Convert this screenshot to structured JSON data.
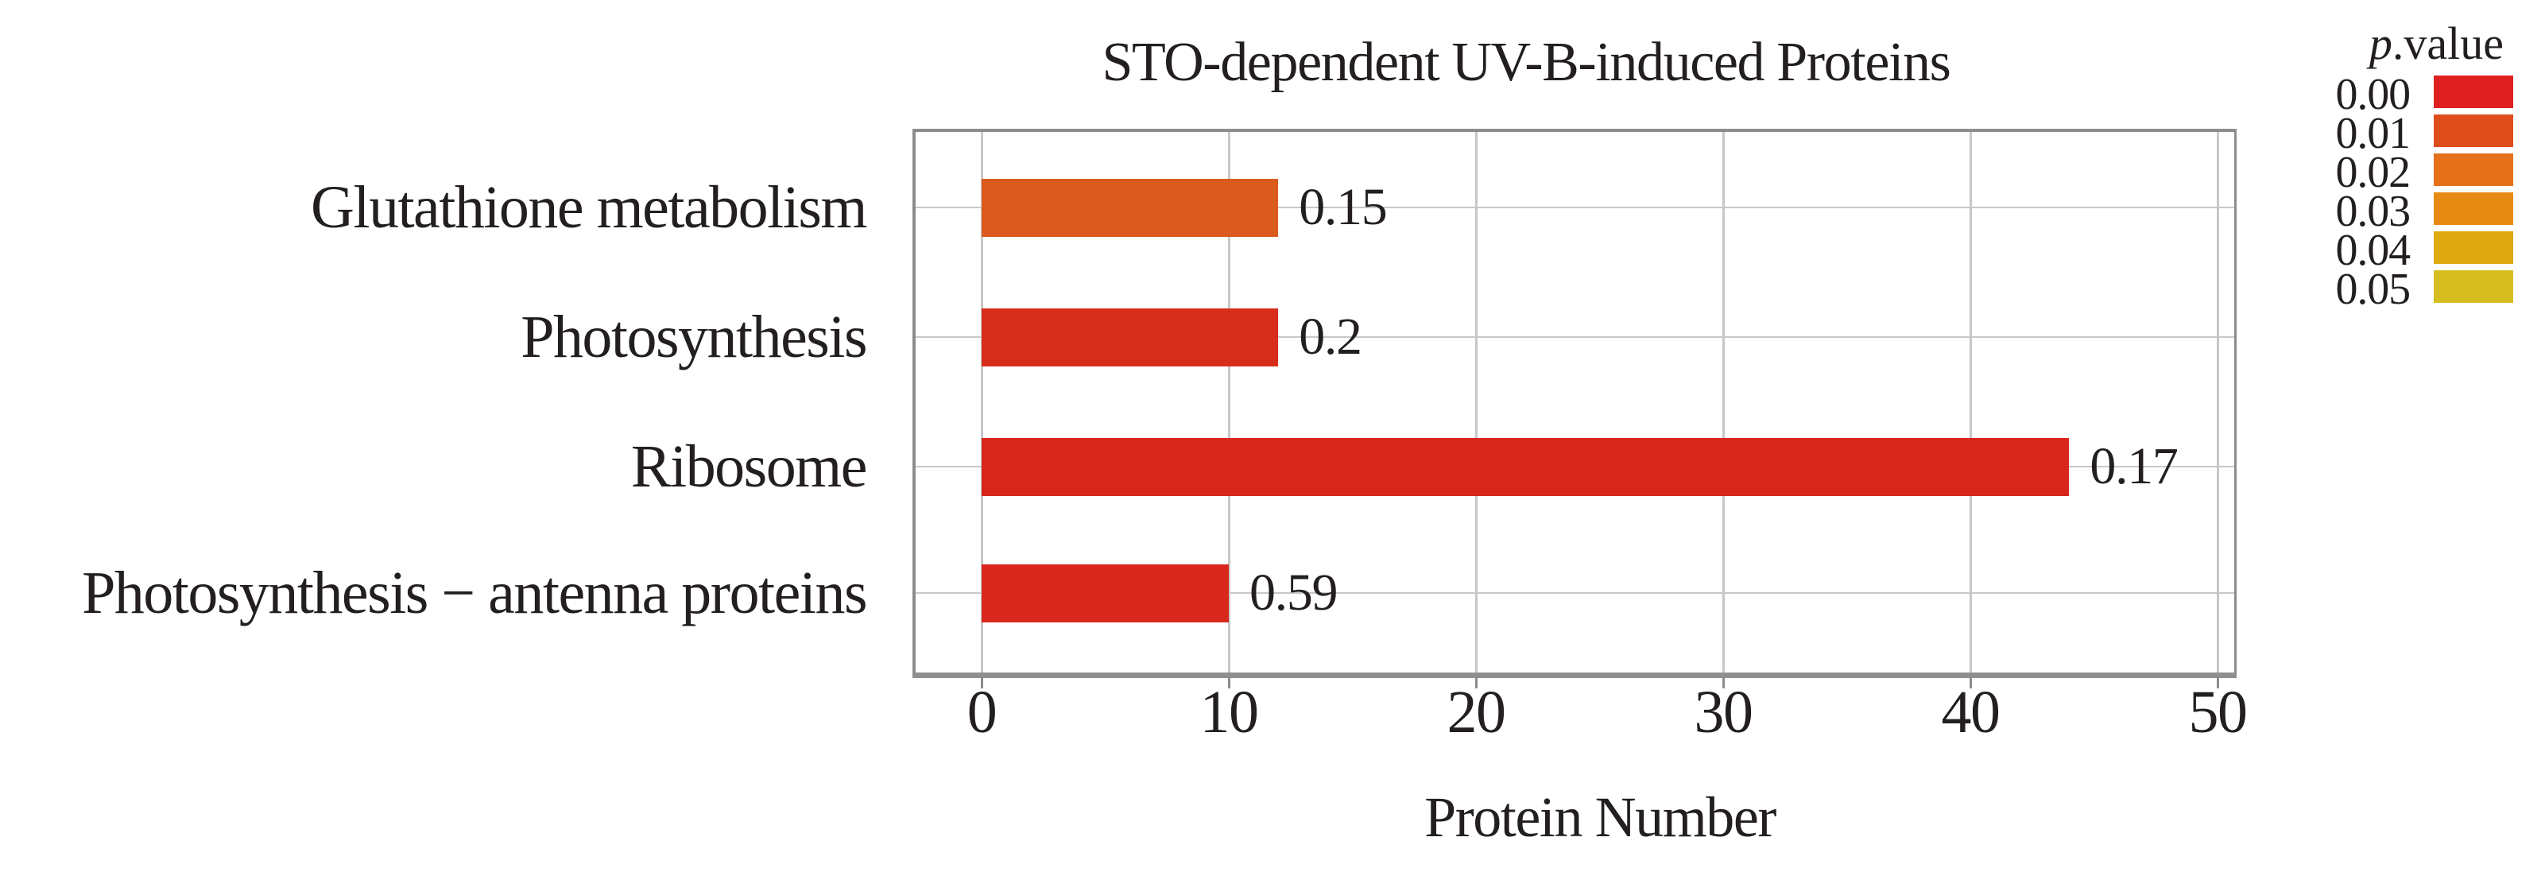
{
  "chart_data": {
    "type": "bar",
    "orientation": "horizontal",
    "title": "STO-dependent UV-B-induced Proteins",
    "xlabel": "Protein Number",
    "ylabel": "",
    "xlim": [
      0,
      50
    ],
    "xticks": [
      0,
      10,
      20,
      30,
      40,
      50
    ],
    "grid": true,
    "categories": [
      "Glutathione metabolism",
      "Photosynthesis",
      "Ribosome",
      "Photosynthesis − antenna proteins"
    ],
    "values": [
      12,
      12,
      44,
      10
    ],
    "bar_value_labels": [
      "0.15",
      "0.2",
      "0.17",
      "0.59"
    ],
    "bar_colors": [
      "#db5a1e",
      "#d72e1c",
      "#d8261c",
      "#d8271d"
    ],
    "legend": {
      "title_italic": "p",
      "title_rest": ".value",
      "position": "top-right",
      "entries": [
        {
          "label": "0.00",
          "color": "#e02020"
        },
        {
          "label": "0.01",
          "color": "#df4d1c"
        },
        {
          "label": "0.02",
          "color": "#e6711a"
        },
        {
          "label": "0.03",
          "color": "#e88b14"
        },
        {
          "label": "0.04",
          "color": "#dfa912"
        },
        {
          "label": "0.05",
          "color": "#d6be20"
        }
      ]
    },
    "style": {
      "grid_color": "#c7c7c7",
      "border_color": "#8c8c8c",
      "text_color": "#241f1f",
      "background": "#ffffff"
    }
  }
}
